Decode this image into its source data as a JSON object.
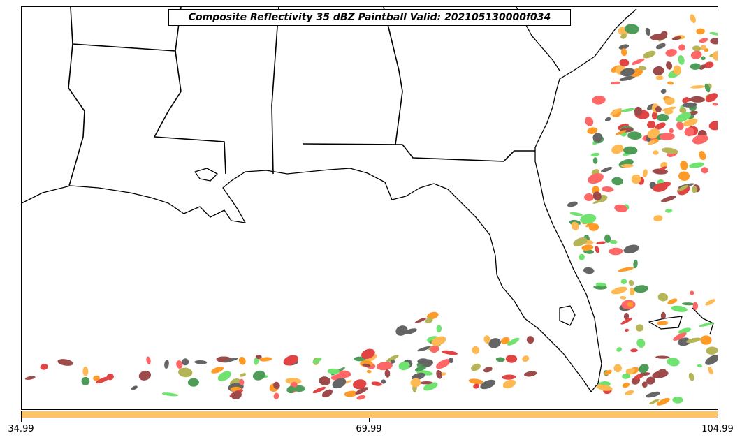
{
  "title": "Composite Reflectivity 35 dBZ Paintball Valid: 202105130000f034",
  "map": {
    "region": "Southeastern United States and Gulf of Mexico",
    "background_color": "#ffffff",
    "line_color": "#000000",
    "features": [
      "coastlines",
      "state borders"
    ],
    "member_colors": [
      "#ff4c4c",
      "#ffad33",
      "#55dd55",
      "#8b2a2a",
      "#4a4a4a",
      "#a8a83a",
      "#2e8b3a",
      "#dd2222",
      "#ff8800"
    ]
  },
  "colorbar": {
    "color": "#ffc466",
    "min_label": "34.99",
    "mid_label": "69.99",
    "max_label": "104.99"
  }
}
